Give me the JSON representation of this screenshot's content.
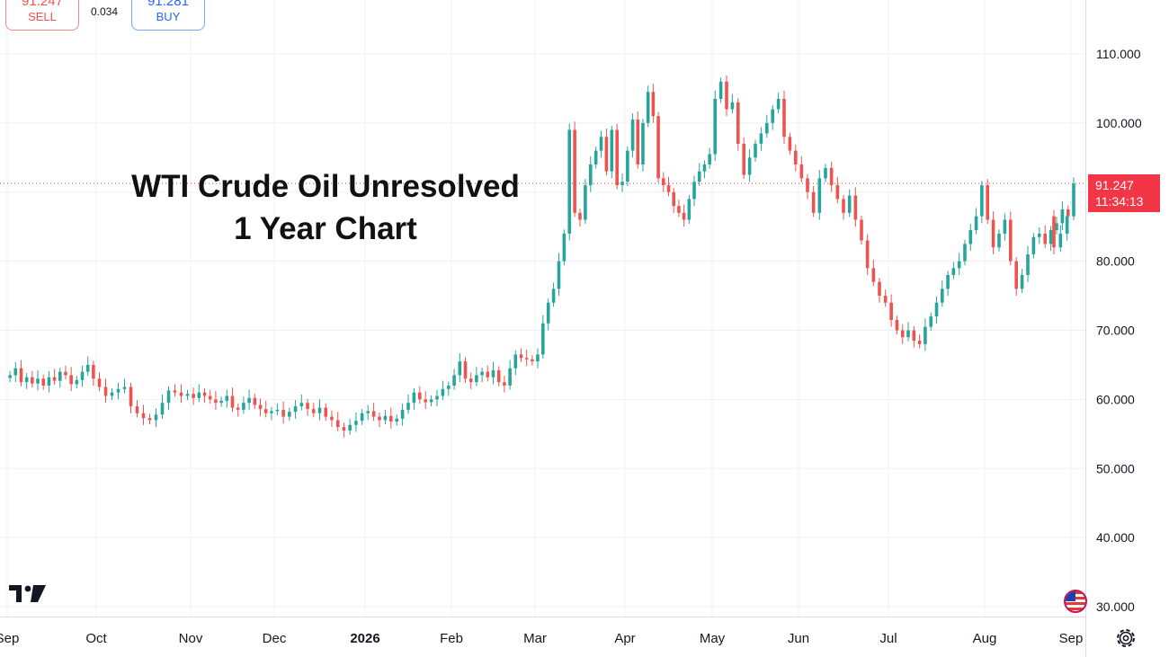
{
  "trade": {
    "sell_price": "91.247",
    "sell_label": "SELL",
    "spread": "0.034",
    "buy_price": "91.281",
    "buy_label": "BUY"
  },
  "overlay": {
    "title_line1": "WTI Crude Oil Unresolved",
    "title_line2": "1 Year Chart"
  },
  "price_tag": {
    "price": "91.247",
    "countdown": "11:34:13"
  },
  "icons": {
    "logo": "tradingview-logo-icon",
    "flag": "us-flag-icon",
    "settings": "settings-gear-icon"
  },
  "colors": {
    "up": "#26a69a",
    "down": "#ef5350",
    "grid": "#eef0f5",
    "price_tag": "#f23645"
  },
  "chart_data": {
    "type": "candlestick",
    "title": "WTI Crude Oil Unresolved 1 Year Chart",
    "x_tick_labels": [
      "Sep",
      "Oct",
      "Nov",
      "Dec",
      "2026",
      "Feb",
      "Mar",
      "Apr",
      "May",
      "Jun",
      "Jul",
      "Aug",
      "Sep"
    ],
    "y_tick_labels": [
      "110.000",
      "100.000",
      "80.000",
      "70.000",
      "60.000",
      "50.000",
      "40.000",
      "30.000"
    ],
    "y_ticks": [
      110,
      100,
      80,
      70,
      60,
      50,
      40,
      30
    ],
    "ylim": [
      28.5,
      118
    ],
    "last_price": 91.247,
    "grid": true,
    "price_points": [
      {
        "date": "Sep",
        "price": 63.5
      },
      {
        "date": "Sep",
        "price": 64.5
      },
      {
        "date": "Sep",
        "price": 62.5
      },
      {
        "date": "Sep",
        "price": 63.2
      },
      {
        "date": "Sep",
        "price": 62.3
      },
      {
        "date": "Sep",
        "price": 63.0
      },
      {
        "date": "Sep",
        "price": 62.0
      },
      {
        "date": "Sep",
        "price": 63.2
      },
      {
        "date": "Sep",
        "price": 62.7
      },
      {
        "date": "Sep",
        "price": 64.0
      },
      {
        "date": "Sep",
        "price": 63.5
      },
      {
        "date": "Sep",
        "price": 62.2
      },
      {
        "date": "Sep",
        "price": 62.8
      },
      {
        "date": "Sep",
        "price": 64.0
      },
      {
        "date": "Sep",
        "price": 65.0
      },
      {
        "date": "Sep",
        "price": 63.0
      },
      {
        "date": "Oct",
        "price": 61.8
      },
      {
        "date": "Oct",
        "price": 60.5
      },
      {
        "date": "Oct",
        "price": 61.0
      },
      {
        "date": "Oct",
        "price": 61.5
      },
      {
        "date": "Oct",
        "price": 61.8
      },
      {
        "date": "Oct",
        "price": 59.0
      },
      {
        "date": "Oct",
        "price": 58.0
      },
      {
        "date": "Oct",
        "price": 57.3
      },
      {
        "date": "Oct",
        "price": 57.0
      },
      {
        "date": "Oct",
        "price": 57.8
      },
      {
        "date": "Oct",
        "price": 59.5
      },
      {
        "date": "Oct",
        "price": 61.3
      },
      {
        "date": "Oct",
        "price": 61.0
      },
      {
        "date": "Oct",
        "price": 60.5
      },
      {
        "date": "Oct",
        "price": 60.8
      },
      {
        "date": "Nov",
        "price": 60.2
      },
      {
        "date": "Nov",
        "price": 61.0
      },
      {
        "date": "Nov",
        "price": 60.5
      },
      {
        "date": "Nov",
        "price": 60.0
      },
      {
        "date": "Nov",
        "price": 59.5
      },
      {
        "date": "Nov",
        "price": 59.8
      },
      {
        "date": "Nov",
        "price": 60.5
      },
      {
        "date": "Nov",
        "price": 58.8
      },
      {
        "date": "Nov",
        "price": 58.5
      },
      {
        "date": "Nov",
        "price": 59.5
      },
      {
        "date": "Nov",
        "price": 60.2
      },
      {
        "date": "Nov",
        "price": 59.2
      },
      {
        "date": "Nov",
        "price": 58.6
      },
      {
        "date": "Nov",
        "price": 58.0
      },
      {
        "date": "Nov",
        "price": 58.3
      },
      {
        "date": "Dec",
        "price": 58.5
      },
      {
        "date": "Dec",
        "price": 57.5
      },
      {
        "date": "Dec",
        "price": 58.2
      },
      {
        "date": "Dec",
        "price": 59.0
      },
      {
        "date": "Dec",
        "price": 59.5
      },
      {
        "date": "Dec",
        "price": 58.6
      },
      {
        "date": "Dec",
        "price": 58.0
      },
      {
        "date": "Dec",
        "price": 58.8
      },
      {
        "date": "Dec",
        "price": 57.5
      },
      {
        "date": "Dec",
        "price": 57.0
      },
      {
        "date": "Dec",
        "price": 56.0
      },
      {
        "date": "Dec",
        "price": 55.5
      },
      {
        "date": "Dec",
        "price": 56.3
      },
      {
        "date": "Dec",
        "price": 56.9
      },
      {
        "date": "Dec",
        "price": 58.0
      },
      {
        "date": "2026",
        "price": 58.3
      },
      {
        "date": "2026",
        "price": 57.5
      },
      {
        "date": "2026",
        "price": 57.0
      },
      {
        "date": "2026",
        "price": 57.6
      },
      {
        "date": "2026",
        "price": 56.8
      },
      {
        "date": "2026",
        "price": 57.2
      },
      {
        "date": "2026",
        "price": 58.5
      },
      {
        "date": "2026",
        "price": 59.5
      },
      {
        "date": "2026",
        "price": 61.0
      },
      {
        "date": "2026",
        "price": 60.0
      },
      {
        "date": "2026",
        "price": 59.6
      },
      {
        "date": "2026",
        "price": 60.0
      },
      {
        "date": "2026",
        "price": 60.5
      },
      {
        "date": "2026",
        "price": 61.5
      },
      {
        "date": "2026",
        "price": 62.0
      },
      {
        "date": "Feb",
        "price": 63.5
      },
      {
        "date": "Feb",
        "price": 65.5
      },
      {
        "date": "Feb",
        "price": 63.0
      },
      {
        "date": "Feb",
        "price": 62.5
      },
      {
        "date": "Feb",
        "price": 63.5
      },
      {
        "date": "Feb",
        "price": 64.0
      },
      {
        "date": "Feb",
        "price": 63.2
      },
      {
        "date": "Feb",
        "price": 64.2
      },
      {
        "date": "Feb",
        "price": 62.5
      },
      {
        "date": "Feb",
        "price": 62.0
      },
      {
        "date": "Feb",
        "price": 64.5
      },
      {
        "date": "Feb",
        "price": 66.5
      },
      {
        "date": "Feb",
        "price": 66.0
      },
      {
        "date": "Feb",
        "price": 65.8
      },
      {
        "date": "Feb",
        "price": 65.5
      },
      {
        "date": "Mar",
        "price": 66.5
      },
      {
        "date": "Mar",
        "price": 71.0
      },
      {
        "date": "Mar",
        "price": 74.0
      },
      {
        "date": "Mar",
        "price": 76.0
      },
      {
        "date": "Mar",
        "price": 80.0
      },
      {
        "date": "Mar",
        "price": 84.0
      },
      {
        "date": "Mar",
        "price": 99.0
      },
      {
        "date": "Mar",
        "price": 87.0
      },
      {
        "date": "Mar",
        "price": 86.0
      },
      {
        "date": "Mar",
        "price": 91.0
      },
      {
        "date": "Mar",
        "price": 94.0
      },
      {
        "date": "Mar",
        "price": 96.0
      },
      {
        "date": "Mar",
        "price": 98.0
      },
      {
        "date": "Mar",
        "price": 93.0
      },
      {
        "date": "Mar",
        "price": 99.0
      },
      {
        "date": "Mar",
        "price": 91.0
      },
      {
        "date": "Mar",
        "price": 91.5
      },
      {
        "date": "Apr",
        "price": 96.0
      },
      {
        "date": "Apr",
        "price": 100.5
      },
      {
        "date": "Apr",
        "price": 94.0
      },
      {
        "date": "Apr",
        "price": 100.0
      },
      {
        "date": "Apr",
        "price": 104.5
      },
      {
        "date": "Apr",
        "price": 101.0
      },
      {
        "date": "Apr",
        "price": 92.0
      },
      {
        "date": "Apr",
        "price": 91.0
      },
      {
        "date": "Apr",
        "price": 90.0
      },
      {
        "date": "Apr",
        "price": 88.0
      },
      {
        "date": "Apr",
        "price": 87.0
      },
      {
        "date": "Apr",
        "price": 86.0
      },
      {
        "date": "Apr",
        "price": 89.0
      },
      {
        "date": "Apr",
        "price": 91.5
      },
      {
        "date": "Apr",
        "price": 93.0
      },
      {
        "date": "Apr",
        "price": 94.0
      },
      {
        "date": "Apr",
        "price": 95.5
      },
      {
        "date": "May",
        "price": 103.5
      },
      {
        "date": "May",
        "price": 106.0
      },
      {
        "date": "May",
        "price": 102.0
      },
      {
        "date": "May",
        "price": 103.0
      },
      {
        "date": "May",
        "price": 97.0
      },
      {
        "date": "May",
        "price": 92.5
      },
      {
        "date": "May",
        "price": 95.0
      },
      {
        "date": "May",
        "price": 97.0
      },
      {
        "date": "May",
        "price": 98.5
      },
      {
        "date": "May",
        "price": 100.0
      },
      {
        "date": "May",
        "price": 102.0
      },
      {
        "date": "May",
        "price": 103.5
      },
      {
        "date": "May",
        "price": 98.0
      },
      {
        "date": "May",
        "price": 96.0
      },
      {
        "date": "May",
        "price": 94.0
      },
      {
        "date": "Jun",
        "price": 92.0
      },
      {
        "date": "Jun",
        "price": 90.0
      },
      {
        "date": "Jun",
        "price": 87.0
      },
      {
        "date": "Jun",
        "price": 92.0
      },
      {
        "date": "Jun",
        "price": 93.5
      },
      {
        "date": "Jun",
        "price": 91.0
      },
      {
        "date": "Jun",
        "price": 89.0
      },
      {
        "date": "Jun",
        "price": 87.0
      },
      {
        "date": "Jun",
        "price": 89.5
      },
      {
        "date": "Jun",
        "price": 86.0
      },
      {
        "date": "Jun",
        "price": 83.0
      },
      {
        "date": "Jun",
        "price": 79.0
      },
      {
        "date": "Jun",
        "price": 77.0
      },
      {
        "date": "Jun",
        "price": 75.0
      },
      {
        "date": "Jun",
        "price": 74.0
      },
      {
        "date": "Jul",
        "price": 71.5
      },
      {
        "date": "Jul",
        "price": 70.0
      },
      {
        "date": "Jul",
        "price": 69.0
      },
      {
        "date": "Jul",
        "price": 70.0
      },
      {
        "date": "Jul",
        "price": 68.5
      },
      {
        "date": "Jul",
        "price": 68.0
      },
      {
        "date": "Jul",
        "price": 70.5
      },
      {
        "date": "Jul",
        "price": 72.0
      },
      {
        "date": "Jul",
        "price": 74.0
      },
      {
        "date": "Jul",
        "price": 76.0
      },
      {
        "date": "Jul",
        "price": 78.0
      },
      {
        "date": "Jul",
        "price": 79.0
      },
      {
        "date": "Jul",
        "price": 80.0
      },
      {
        "date": "Jul",
        "price": 82.5
      },
      {
        "date": "Jul",
        "price": 84.5
      },
      {
        "date": "Jul",
        "price": 86.5
      },
      {
        "date": "Jul",
        "price": 91.0
      },
      {
        "date": "Aug",
        "price": 86.0
      },
      {
        "date": "Aug",
        "price": 82.0
      },
      {
        "date": "Aug",
        "price": 84.0
      },
      {
        "date": "Aug",
        "price": 86.0
      },
      {
        "date": "Aug",
        "price": 80.0
      },
      {
        "date": "Aug",
        "price": 76.0
      },
      {
        "date": "Aug",
        "price": 78.0
      },
      {
        "date": "Aug",
        "price": 81.0
      },
      {
        "date": "Aug",
        "price": 83.5
      },
      {
        "date": "Aug",
        "price": 84.0
      },
      {
        "date": "Aug",
        "price": 82.5
      },
      {
        "date": "Aug",
        "price": 84.5
      },
      {
        "date": "Aug",
        "price": 85.5
      },
      {
        "date": "Aug",
        "price": 87.5
      },
      {
        "date": "Aug",
        "price": 86.5
      },
      {
        "date": "Sep",
        "price": 82.0
      },
      {
        "date": "Sep",
        "price": 84.0
      },
      {
        "date": "Sep",
        "price": 86.5
      },
      {
        "date": "Sep",
        "price": 91.247
      }
    ]
  }
}
